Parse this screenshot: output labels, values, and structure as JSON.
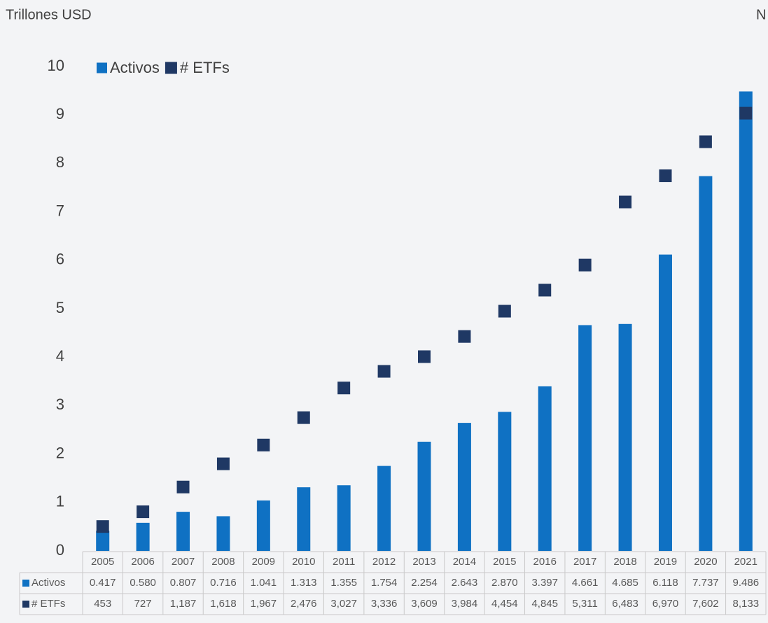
{
  "chart_data": {
    "type": "bar",
    "y_label": "Trillones USD",
    "y2_label": "N",
    "categories": [
      "2005",
      "2006",
      "2007",
      "2008",
      "2009",
      "2010",
      "2011",
      "2012",
      "2013",
      "2014",
      "2015",
      "2016",
      "2017",
      "2018",
      "2019",
      "2020",
      "2021"
    ],
    "series": [
      {
        "name": "Activos",
        "type": "bar",
        "axis": "y",
        "color": "#0f71c3",
        "values": [
          0.417,
          0.58,
          0.807,
          0.716,
          1.041,
          1.313,
          1.355,
          1.754,
          2.254,
          2.643,
          2.87,
          3.397,
          4.661,
          4.685,
          6.118,
          7.737,
          9.486
        ],
        "value_labels": [
          "0.417",
          "0.580",
          "0.807",
          "0.716",
          "1.041",
          "1.313",
          "1.355",
          "1.754",
          "2.254",
          "2.643",
          "2.870",
          "3.397",
          "4.661",
          "4.685",
          "6.118",
          "7.737",
          "9.486"
        ]
      },
      {
        "name": "# ETFs",
        "type": "scatter",
        "axis": "y2",
        "color": "#1f3864",
        "values": [
          453,
          727,
          1187,
          1618,
          1967,
          2476,
          3027,
          3336,
          3609,
          3984,
          4454,
          4845,
          5311,
          6483,
          6970,
          7602,
          8133
        ],
        "value_labels": [
          "453",
          "727",
          "1,187",
          "1,618",
          "1,967",
          "2,476",
          "3,027",
          "3,336",
          "3,609",
          "3,984",
          "4,454",
          "4,845",
          "5,311",
          "6,483",
          "6,970",
          "7,602",
          "8,133"
        ]
      }
    ],
    "ylim": [
      0,
      10
    ],
    "yticks": [
      0,
      1,
      2,
      3,
      4,
      5,
      6,
      7,
      8,
      9,
      10
    ],
    "y2lim": [
      0,
      9000
    ]
  }
}
